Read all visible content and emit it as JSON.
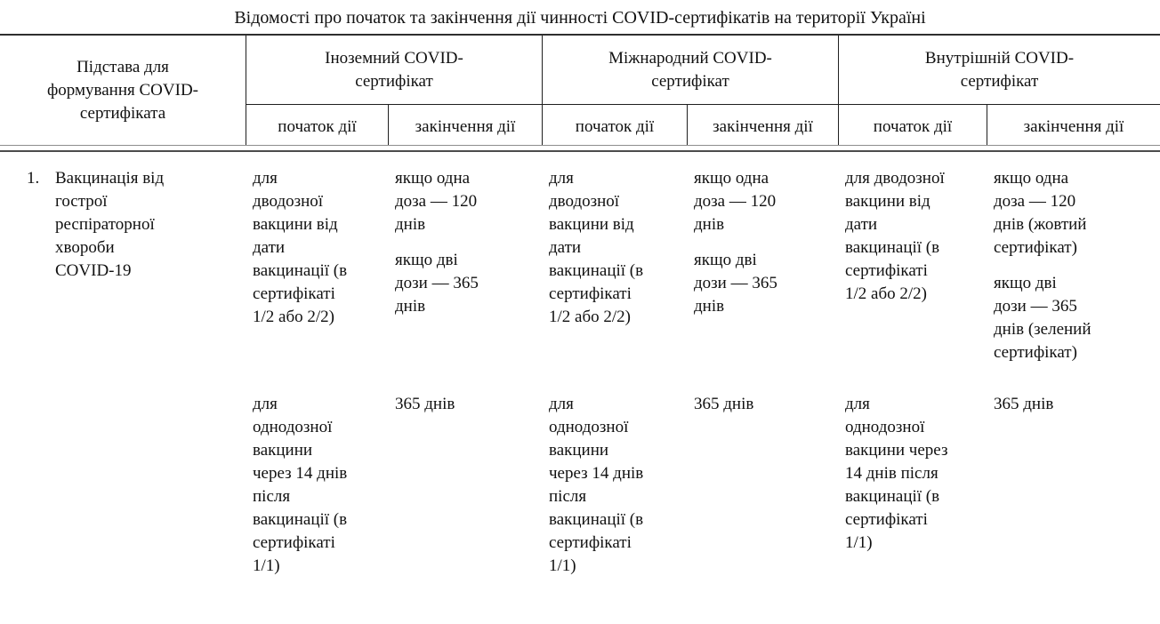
{
  "title": "Відомості про початок та закінчення дії чинності COVID-сертифікатів на території Україні",
  "table": {
    "col1_header": "Підстава для\nформування COVID-\nсертифіката",
    "groups": [
      {
        "label": "Іноземний COVID-\nсертифікат",
        "start_header": "початок дії",
        "end_header": "закінчення дії"
      },
      {
        "label": "Міжнародний COVID-\nсертифікат",
        "start_header": "початок дії",
        "end_header": "закінчення дії"
      },
      {
        "label": "Внутрішній COVID-\nсертифікат",
        "start_header": "початок дії",
        "end_header": "закінчення дії"
      }
    ],
    "rows": [
      {
        "number": "1.",
        "basis": "Вакцинація від\nгострої\nреспіраторної\nхвороби\nCOVID-19",
        "subrows": [
          {
            "cells": [
              {
                "paragraphs": [
                  "для\nдводозної\nвакцини від\nдати\nвакцинації (в\nсертифікаті\n1/2 або 2/2)"
                ]
              },
              {
                "paragraphs": [
                  "якщо одна\nдоза — 120\nднів",
                  "якщо дві\nдози — 365\nднів"
                ]
              },
              {
                "paragraphs": [
                  "для\nдводозної\nвакцини від\nдати\nвакцинації (в\nсертифікаті\n1/2 або 2/2)"
                ]
              },
              {
                "paragraphs": [
                  "якщо одна\nдоза — 120\nднів",
                  "якщо дві\nдози — 365\nднів"
                ]
              },
              {
                "paragraphs": [
                  "для дводозної\nвакцини від\nдати\nвакцинації (в\nсертифікаті\n1/2 або 2/2)"
                ]
              },
              {
                "paragraphs": [
                  "якщо одна\nдоза — 120\nднів (жовтий\nсертифікат)",
                  "якщо дві\nдози — 365\nднів (зелений\nсертифікат)"
                ]
              }
            ]
          },
          {
            "cells": [
              {
                "paragraphs": [
                  "для\nоднодозної\nвакцини\nчерез 14 днів\nпісля\nвакцинації (в\nсертифікаті\n1/1)"
                ]
              },
              {
                "paragraphs": [
                  "365 днів"
                ]
              },
              {
                "paragraphs": [
                  "для\nоднодозної\nвакцини\nчерез 14 днів\nпісля\nвакцинації (в\nсертифікаті\n1/1)"
                ]
              },
              {
                "paragraphs": [
                  "365 днів"
                ]
              },
              {
                "paragraphs": [
                  "для\nоднодозної\nвакцини через\n14 днів після\nвакцинації (в\nсертифікаті\n1/1)"
                ]
              },
              {
                "paragraphs": [
                  "365 днів"
                ]
              }
            ]
          }
        ]
      }
    ]
  }
}
